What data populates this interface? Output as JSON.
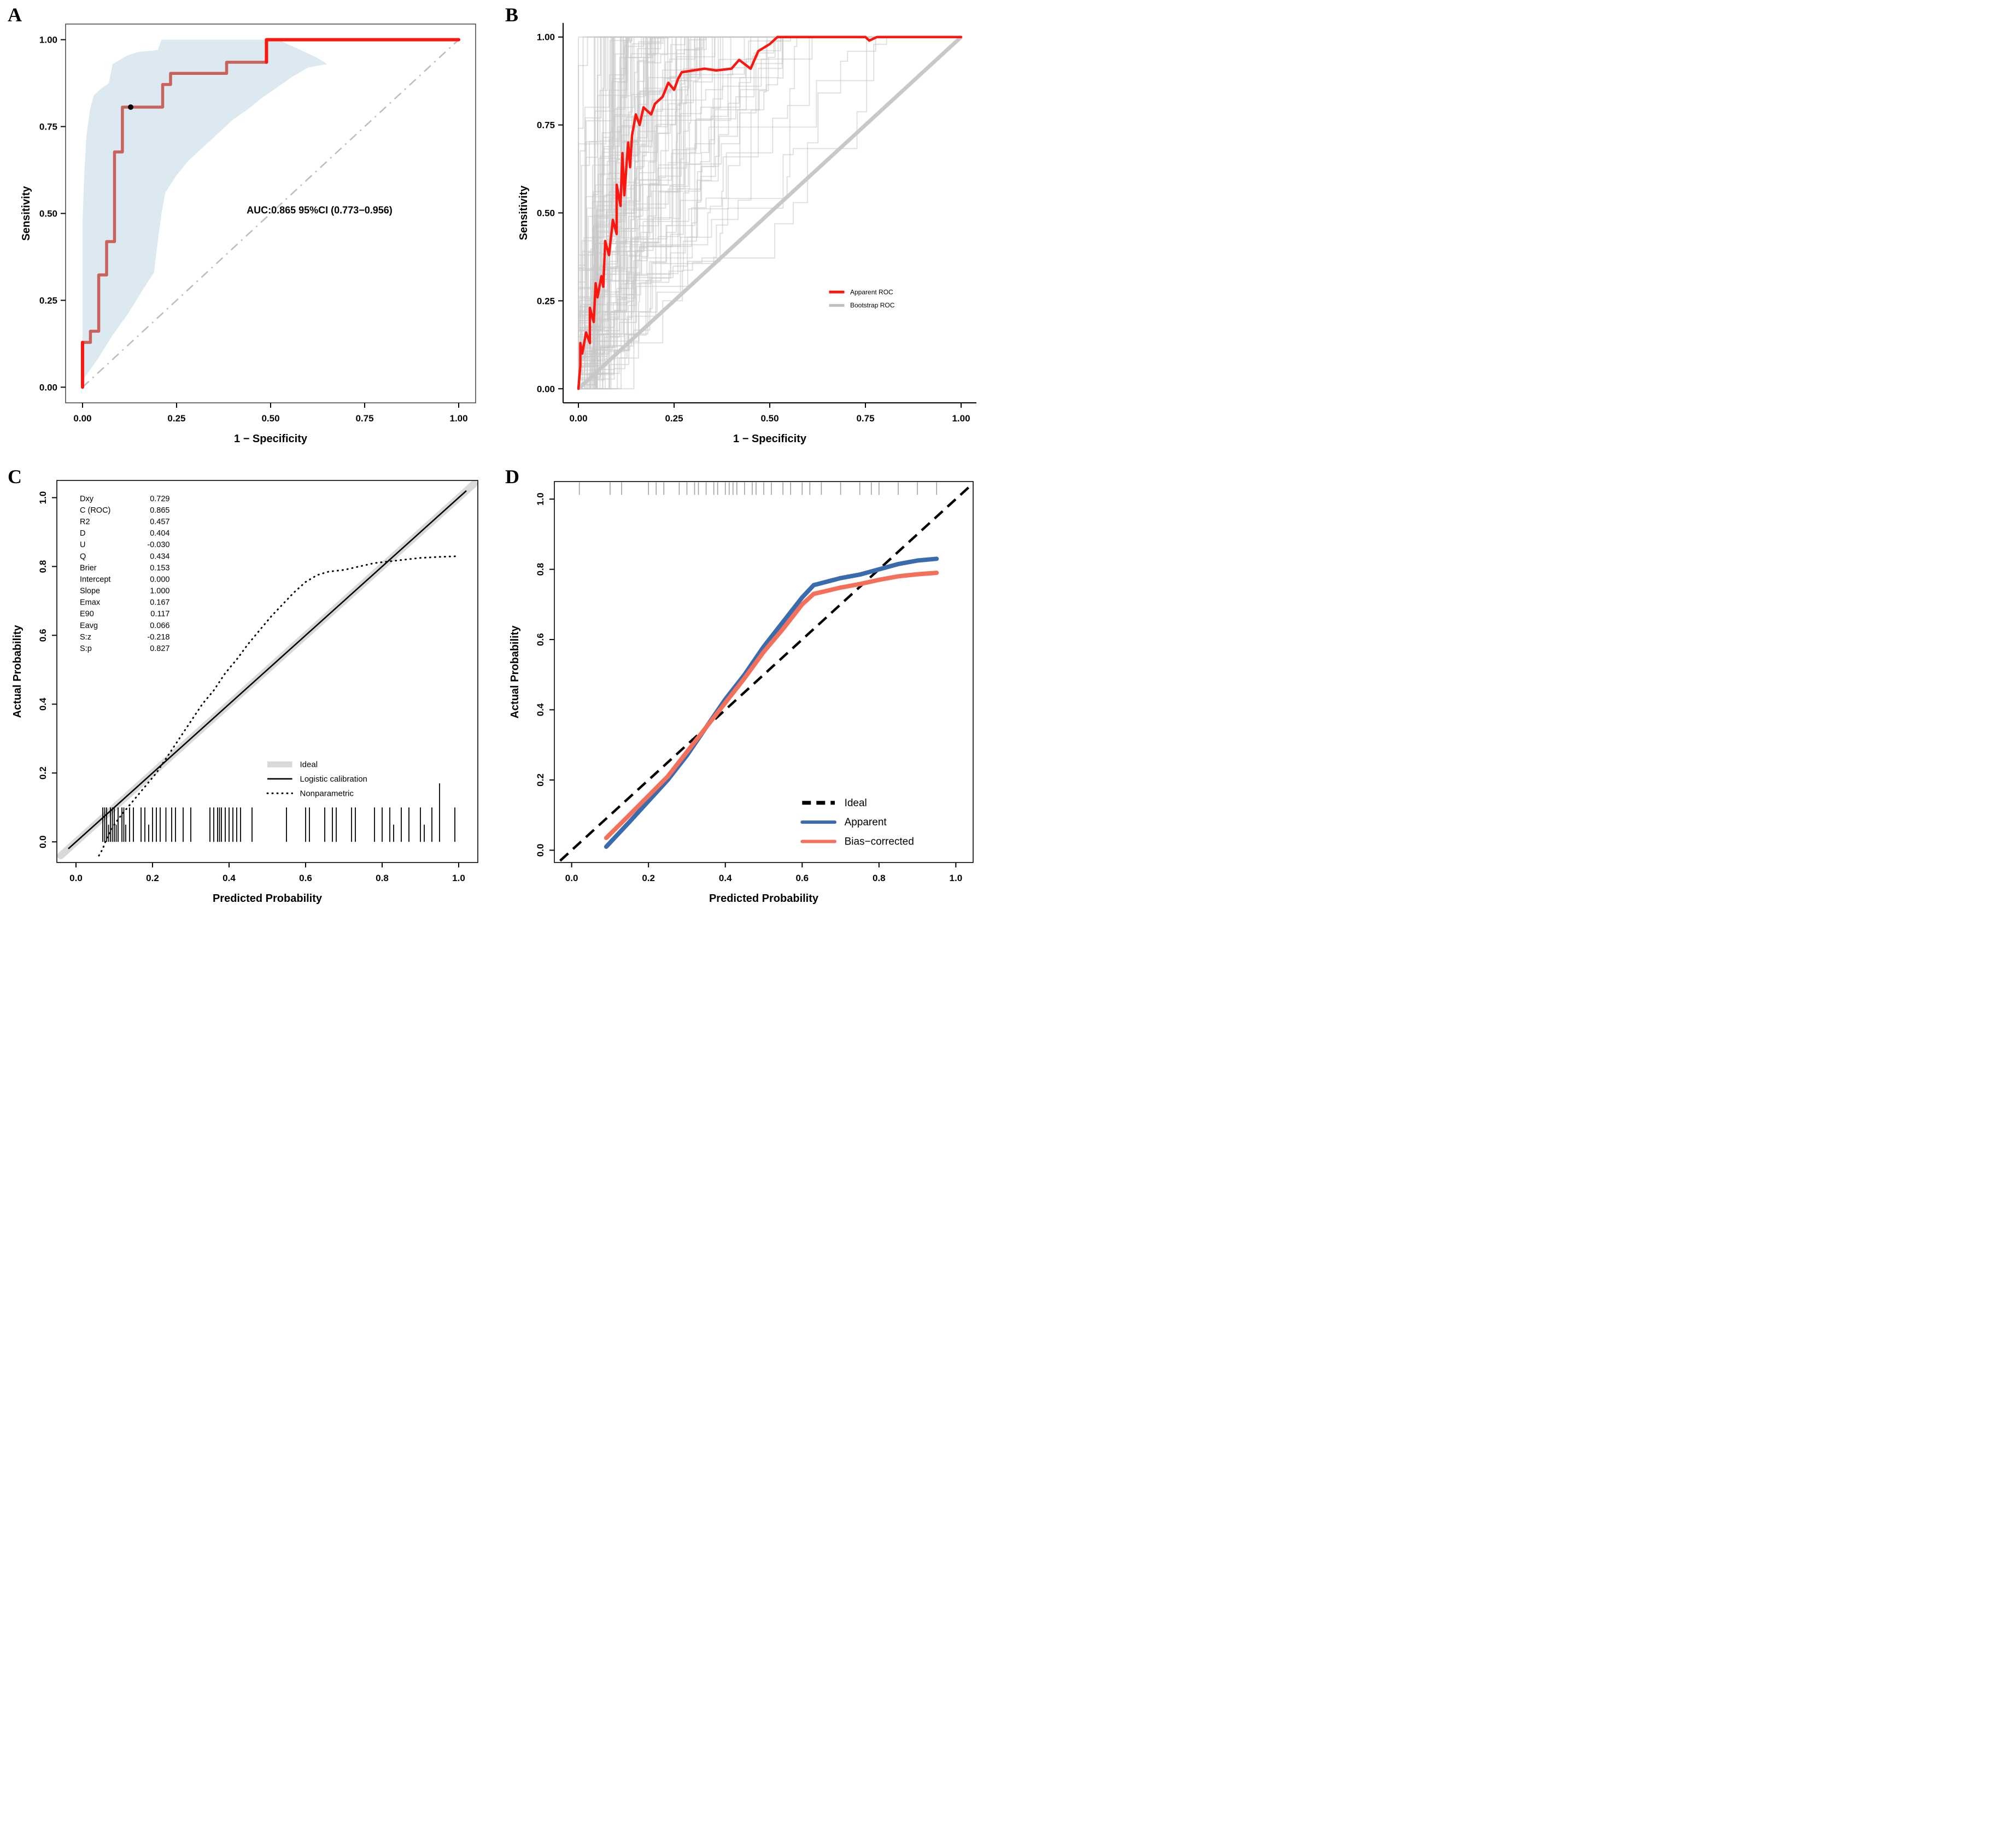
{
  "figure_title": "",
  "chart_data": [
    {
      "panel_label": "A",
      "type": "line",
      "subtype": "roc_with_ci",
      "xlabel": "1 − Specificity",
      "ylabel": "Sensitivity",
      "xdomain": [
        -0.045,
        1.045
      ],
      "ydomain": [
        -0.045,
        1.045
      ],
      "xticks": [
        0,
        0.25,
        0.5,
        0.75,
        1
      ],
      "xtick_labels": [
        "0.00",
        "0.25",
        "0.50",
        "0.75",
        "1.00"
      ],
      "yticks": [
        0,
        0.25,
        0.5,
        0.75,
        1
      ],
      "ytick_labels": [
        "0.00",
        "0.25",
        "0.50",
        "0.75",
        "1.00"
      ],
      "annotation": {
        "text": "AUC:0.865 95%CI (0.773−0.956)",
        "x": 0.63,
        "y": 0.5
      },
      "roc": [
        [
          0,
          0
        ],
        [
          0,
          0.129
        ],
        [
          0.021,
          0.129
        ],
        [
          0.021,
          0.161
        ],
        [
          0.043,
          0.161
        ],
        [
          0.043,
          0.323
        ],
        [
          0.064,
          0.323
        ],
        [
          0.064,
          0.419
        ],
        [
          0.085,
          0.419
        ],
        [
          0.085,
          0.677
        ],
        [
          0.106,
          0.677
        ],
        [
          0.106,
          0.806
        ],
        [
          0.213,
          0.806
        ],
        [
          0.213,
          0.871
        ],
        [
          0.234,
          0.871
        ],
        [
          0.234,
          0.903
        ],
        [
          0.383,
          0.903
        ],
        [
          0.383,
          0.935
        ],
        [
          0.489,
          0.935
        ],
        [
          0.489,
          1
        ],
        [
          1,
          1
        ]
      ],
      "highlight_segments": [
        [
          [
            0,
            0
          ],
          [
            0,
            0.129
          ]
        ],
        [
          [
            0.489,
            0.935
          ],
          [
            0.489,
            1
          ],
          [
            1,
            1
          ]
        ]
      ],
      "marked_point": [
        0.128,
        0.806
      ],
      "ci": {
        "upper": [
          [
            0,
            0.48
          ],
          [
            0.005,
            0.62
          ],
          [
            0.01,
            0.72
          ],
          [
            0.02,
            0.8
          ],
          [
            0.03,
            0.84
          ],
          [
            0.05,
            0.86
          ],
          [
            0.07,
            0.875
          ],
          [
            0.08,
            0.93
          ],
          [
            0.12,
            0.955
          ],
          [
            0.15,
            0.965
          ],
          [
            0.2,
            0.97
          ],
          [
            0.21,
            1
          ],
          [
            0.52,
            1
          ],
          [
            0.55,
            0.985
          ],
          [
            0.58,
            0.97
          ],
          [
            0.62,
            0.95
          ],
          [
            0.65,
            0.93
          ]
        ],
        "lower": [
          [
            0,
            0.02
          ],
          [
            0.04,
            0.08
          ],
          [
            0.08,
            0.15
          ],
          [
            0.12,
            0.21
          ],
          [
            0.16,
            0.28
          ],
          [
            0.19,
            0.33
          ],
          [
            0.2,
            0.42
          ],
          [
            0.21,
            0.5
          ],
          [
            0.22,
            0.56
          ],
          [
            0.25,
            0.61
          ],
          [
            0.28,
            0.65
          ],
          [
            0.31,
            0.68
          ],
          [
            0.34,
            0.71
          ],
          [
            0.37,
            0.74
          ],
          [
            0.4,
            0.77
          ],
          [
            0.44,
            0.8
          ],
          [
            0.48,
            0.835
          ],
          [
            0.52,
            0.865
          ],
          [
            0.56,
            0.895
          ],
          [
            0.6,
            0.92
          ],
          [
            0.65,
            0.93
          ]
        ]
      },
      "colors": {
        "curve": "#C9625C",
        "highlight": "#FB1710",
        "band": "#DCE9F1",
        "diagonal": "#BDBDBD"
      }
    },
    {
      "panel_label": "B",
      "type": "line",
      "subtype": "roc_bootstrap",
      "xlabel": "1 − Specificity",
      "ylabel": "Sensitivity",
      "xdomain": [
        -0.04,
        1.04
      ],
      "ydomain": [
        -0.04,
        1.04
      ],
      "xticks": [
        0,
        0.25,
        0.5,
        0.75,
        1
      ],
      "xtick_labels": [
        "0.00",
        "0.25",
        "0.50",
        "0.75",
        "1.00"
      ],
      "yticks": [
        0,
        0.25,
        0.5,
        0.75,
        1
      ],
      "ytick_labels": [
        "0.00",
        "0.25",
        "0.50",
        "0.75",
        "1.00"
      ],
      "apparent_roc": [
        [
          0,
          0
        ],
        [
          0.005,
          0.065
        ],
        [
          0.005,
          0.13
        ],
        [
          0.01,
          0.1
        ],
        [
          0.02,
          0.16
        ],
        [
          0.03,
          0.13
        ],
        [
          0.03,
          0.23
        ],
        [
          0.04,
          0.19
        ],
        [
          0.045,
          0.3
        ],
        [
          0.05,
          0.26
        ],
        [
          0.06,
          0.32
        ],
        [
          0.065,
          0.29
        ],
        [
          0.07,
          0.42
        ],
        [
          0.08,
          0.38
        ],
        [
          0.09,
          0.48
        ],
        [
          0.1,
          0.44
        ],
        [
          0.1,
          0.58
        ],
        [
          0.11,
          0.52
        ],
        [
          0.115,
          0.67
        ],
        [
          0.12,
          0.55
        ],
        [
          0.13,
          0.7
        ],
        [
          0.135,
          0.63
        ],
        [
          0.14,
          0.72
        ],
        [
          0.15,
          0.78
        ],
        [
          0.16,
          0.75
        ],
        [
          0.17,
          0.8
        ],
        [
          0.19,
          0.78
        ],
        [
          0.2,
          0.81
        ],
        [
          0.22,
          0.83
        ],
        [
          0.235,
          0.87
        ],
        [
          0.25,
          0.85
        ],
        [
          0.26,
          0.88
        ],
        [
          0.27,
          0.9
        ],
        [
          0.3,
          0.905
        ],
        [
          0.33,
          0.91
        ],
        [
          0.36,
          0.905
        ],
        [
          0.4,
          0.91
        ],
        [
          0.42,
          0.935
        ],
        [
          0.45,
          0.91
        ],
        [
          0.47,
          0.96
        ],
        [
          0.5,
          0.98
        ],
        [
          0.52,
          1
        ],
        [
          0.75,
          1
        ],
        [
          0.76,
          0.99
        ],
        [
          0.78,
          1
        ],
        [
          1,
          1
        ]
      ],
      "bootstrap": {
        "count": 110,
        "seed": 7
      },
      "legend": {
        "x": 0.655,
        "y": 0.275,
        "row_gap": 0.038,
        "items": [
          {
            "label": "Apparent ROC",
            "color": "#FB1710"
          },
          {
            "label": "Bootstrap ROC",
            "color": "#BEBEBE"
          }
        ]
      },
      "colors": {
        "apparent": "#FB1710",
        "bootstrap": "#C6C6C6",
        "diagonal": "#C8C8C8"
      }
    },
    {
      "panel_label": "C",
      "type": "line",
      "subtype": "calibration_stats",
      "xlabel": "Predicted Probability",
      "ylabel": "Actual Probability",
      "xdomain": [
        -0.05,
        1.05
      ],
      "ydomain": [
        -0.06,
        1.05
      ],
      "xticks": [
        0,
        0.2,
        0.4,
        0.6,
        0.8,
        1
      ],
      "xtick_labels": [
        "0.0",
        "0.2",
        "0.4",
        "0.6",
        "0.8",
        "1.0"
      ],
      "yticks": [
        0,
        0.2,
        0.4,
        0.6,
        0.8,
        1
      ],
      "ytick_labels": [
        "0.0",
        "0.2",
        "0.4",
        "0.6",
        "0.8",
        "1.0"
      ],
      "stats": [
        {
          "name": "Dxy",
          "value": "0.729"
        },
        {
          "name": "C (ROC)",
          "value": "0.865"
        },
        {
          "name": "R2",
          "value": "0.457"
        },
        {
          "name": "D",
          "value": "0.404"
        },
        {
          "name": "U",
          "value": "-0.030"
        },
        {
          "name": "Q",
          "value": "0.434"
        },
        {
          "name": "Brier",
          "value": "0.153"
        },
        {
          "name": "Intercept",
          "value": "0.000"
        },
        {
          "name": "Slope",
          "value": "1.000"
        },
        {
          "name": "Emax",
          "value": "0.167"
        },
        {
          "name": "E90",
          "value": "0.117"
        },
        {
          "name": "Eavg",
          "value": "0.066"
        },
        {
          "name": "S:z",
          "value": "-0.218"
        },
        {
          "name": "S:p",
          "value": "0.827"
        }
      ],
      "nonparametric": [
        [
          0.06,
          -0.04
        ],
        [
          0.07,
          -0.02
        ],
        [
          0.08,
          0.01
        ],
        [
          0.09,
          0.03
        ],
        [
          0.1,
          0.05
        ],
        [
          0.12,
          0.08
        ],
        [
          0.15,
          0.12
        ],
        [
          0.18,
          0.16
        ],
        [
          0.21,
          0.2
        ],
        [
          0.24,
          0.25
        ],
        [
          0.27,
          0.3
        ],
        [
          0.3,
          0.35
        ],
        [
          0.33,
          0.4
        ],
        [
          0.36,
          0.44
        ],
        [
          0.39,
          0.49
        ],
        [
          0.42,
          0.53
        ],
        [
          0.45,
          0.575
        ],
        [
          0.48,
          0.615
        ],
        [
          0.51,
          0.655
        ],
        [
          0.54,
          0.69
        ],
        [
          0.57,
          0.725
        ],
        [
          0.6,
          0.755
        ],
        [
          0.63,
          0.775
        ],
        [
          0.66,
          0.785
        ],
        [
          0.7,
          0.79
        ],
        [
          0.74,
          0.8
        ],
        [
          0.78,
          0.81
        ],
        [
          0.82,
          0.815
        ],
        [
          0.86,
          0.82
        ],
        [
          0.9,
          0.825
        ],
        [
          0.95,
          0.828
        ],
        [
          1,
          0.83
        ]
      ],
      "rug": [
        [
          0.07,
          0.1
        ],
        [
          0.075,
          0.1
        ],
        [
          0.08,
          0.1
        ],
        [
          0.085,
          0.05
        ],
        [
          0.09,
          0.1
        ],
        [
          0.095,
          0.1
        ],
        [
          0.1,
          0.1
        ],
        [
          0.105,
          0.05
        ],
        [
          0.11,
          0.1
        ],
        [
          0.12,
          0.1
        ],
        [
          0.125,
          0.1
        ],
        [
          0.13,
          0.05
        ],
        [
          0.14,
          0.1
        ],
        [
          0.15,
          0.1
        ],
        [
          0.17,
          0.1
        ],
        [
          0.18,
          0.1
        ],
        [
          0.19,
          0.05
        ],
        [
          0.2,
          0.1
        ],
        [
          0.21,
          0.1
        ],
        [
          0.22,
          0.1
        ],
        [
          0.235,
          0.1
        ],
        [
          0.25,
          0.1
        ],
        [
          0.26,
          0.1
        ],
        [
          0.28,
          0.1
        ],
        [
          0.3,
          0.1
        ],
        [
          0.35,
          0.1
        ],
        [
          0.36,
          0.1
        ],
        [
          0.37,
          0.1
        ],
        [
          0.375,
          0.1
        ],
        [
          0.38,
          0.1
        ],
        [
          0.39,
          0.1
        ],
        [
          0.4,
          0.1
        ],
        [
          0.41,
          0.1
        ],
        [
          0.42,
          0.1
        ],
        [
          0.43,
          0.1
        ],
        [
          0.46,
          0.1
        ],
        [
          0.55,
          0.1
        ],
        [
          0.6,
          0.1
        ],
        [
          0.61,
          0.1
        ],
        [
          0.65,
          0.1
        ],
        [
          0.67,
          0.1
        ],
        [
          0.68,
          0.1
        ],
        [
          0.72,
          0.1
        ],
        [
          0.73,
          0.1
        ],
        [
          0.78,
          0.1
        ],
        [
          0.8,
          0.1
        ],
        [
          0.82,
          0.1
        ],
        [
          0.83,
          0.05
        ],
        [
          0.85,
          0.1
        ],
        [
          0.87,
          0.1
        ],
        [
          0.9,
          0.1
        ],
        [
          0.91,
          0.05
        ],
        [
          0.93,
          0.1
        ],
        [
          0.95,
          0.17
        ],
        [
          0.99,
          0.1
        ]
      ],
      "legend": {
        "x": 0.5,
        "y": 0.225,
        "row_gap": 0.042,
        "items": [
          {
            "label": "Ideal",
            "kind": "band",
            "color": "#D9D9D9"
          },
          {
            "label": "Logistic calibration",
            "kind": "solid",
            "color": "#000000"
          },
          {
            "label": "Nonparametric",
            "kind": "dotted",
            "color": "#000000"
          }
        ]
      },
      "colors": {
        "ideal": "#D9D9D9",
        "logistic": "#000000",
        "nonparametric": "#000000"
      }
    },
    {
      "panel_label": "D",
      "type": "line",
      "subtype": "calibration_compare",
      "xlabel": "Predicted Probability",
      "ylabel": "Actual Probability",
      "xdomain": [
        -0.045,
        1.045
      ],
      "ydomain": [
        -0.035,
        1.05
      ],
      "xticks": [
        0,
        0.2,
        0.4,
        0.6,
        0.8,
        1
      ],
      "xtick_labels": [
        "0.0",
        "0.2",
        "0.4",
        "0.6",
        "0.8",
        "1.0"
      ],
      "yticks": [
        0,
        0.2,
        0.4,
        0.6,
        0.8,
        1
      ],
      "ytick_labels": [
        "0.0",
        "0.2",
        "0.4",
        "0.6",
        "0.8",
        "1.0"
      ],
      "apparent": [
        [
          0.09,
          0.01
        ],
        [
          0.15,
          0.08
        ],
        [
          0.2,
          0.14
        ],
        [
          0.25,
          0.2
        ],
        [
          0.3,
          0.27
        ],
        [
          0.35,
          0.35
        ],
        [
          0.4,
          0.43
        ],
        [
          0.45,
          0.5
        ],
        [
          0.5,
          0.58
        ],
        [
          0.55,
          0.65
        ],
        [
          0.6,
          0.72
        ],
        [
          0.63,
          0.755
        ],
        [
          0.7,
          0.775
        ],
        [
          0.75,
          0.785
        ],
        [
          0.8,
          0.8
        ],
        [
          0.85,
          0.815
        ],
        [
          0.9,
          0.825
        ],
        [
          0.95,
          0.83
        ]
      ],
      "bias_corrected": [
        [
          0.09,
          0.035
        ],
        [
          0.15,
          0.1
        ],
        [
          0.2,
          0.155
        ],
        [
          0.25,
          0.21
        ],
        [
          0.3,
          0.28
        ],
        [
          0.35,
          0.35
        ],
        [
          0.4,
          0.42
        ],
        [
          0.45,
          0.49
        ],
        [
          0.5,
          0.565
        ],
        [
          0.55,
          0.63
        ],
        [
          0.6,
          0.7
        ],
        [
          0.63,
          0.73
        ],
        [
          0.7,
          0.748
        ],
        [
          0.75,
          0.758
        ],
        [
          0.8,
          0.77
        ],
        [
          0.85,
          0.78
        ],
        [
          0.9,
          0.786
        ],
        [
          0.95,
          0.79
        ]
      ],
      "rug_top": [
        0.02,
        0.1,
        0.13,
        0.2,
        0.22,
        0.24,
        0.28,
        0.3,
        0.32,
        0.33,
        0.35,
        0.37,
        0.38,
        0.4,
        0.41,
        0.42,
        0.43,
        0.45,
        0.47,
        0.48,
        0.5,
        0.52,
        0.55,
        0.57,
        0.6,
        0.62,
        0.65,
        0.7,
        0.75,
        0.78,
        0.8,
        0.85,
        0.9,
        0.95
      ],
      "legend": {
        "x": 0.6,
        "y": 0.135,
        "row_gap": 0.055,
        "items": [
          {
            "label": "Ideal",
            "kind": "dashed",
            "color": "#000000"
          },
          {
            "label": "Apparent",
            "kind": "solid",
            "color": "#3A6BAD"
          },
          {
            "label": "Bias−corrected",
            "kind": "solid",
            "color": "#F4705A"
          }
        ]
      },
      "colors": {
        "ideal": "#000000",
        "apparent": "#3A6BAD",
        "bias_corrected": "#F4705A",
        "rug": "#A0A0A0"
      }
    }
  ]
}
